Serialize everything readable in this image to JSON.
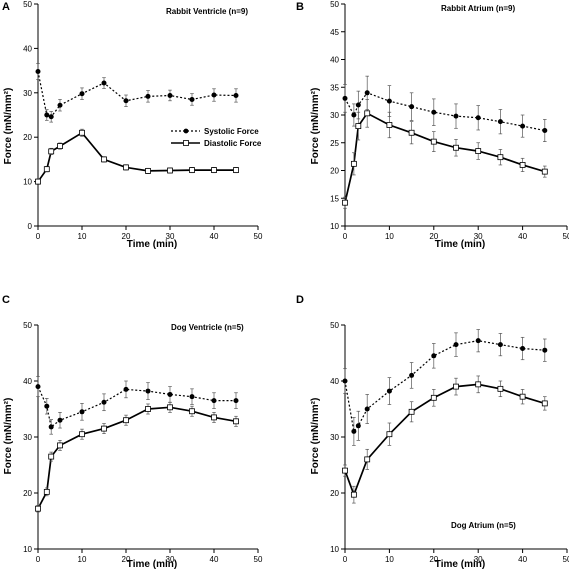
{
  "chart_data": [
    {
      "type": "line",
      "panel": "A",
      "title": "Rabbit Ventricle (n=9)",
      "xlabel": "Time (min)",
      "ylabel": "Force (mN/mm²)",
      "xlim": [
        0,
        50
      ],
      "ylim": [
        0,
        50
      ],
      "x_ticks": [
        0,
        10,
        20,
        30,
        40,
        50
      ],
      "y_ticks": [
        0,
        10,
        20,
        30,
        40,
        50
      ],
      "legend": {
        "position": "center-right"
      },
      "series": [
        {
          "name": "Systolic Force",
          "style": "dotted",
          "marker": "filled-circle",
          "x": [
            0,
            2,
            3,
            5,
            10,
            15,
            20,
            25,
            30,
            35,
            40,
            45
          ],
          "y": [
            34.8,
            25.0,
            24.6,
            27.2,
            29.8,
            32.2,
            28.2,
            29.2,
            29.4,
            28.5,
            29.5,
            29.4
          ],
          "err": [
            1.8,
            1.2,
            1.2,
            1.3,
            1.3,
            1.2,
            1.3,
            1.3,
            1.2,
            1.3,
            1.4,
            1.5
          ]
        },
        {
          "name": "Diastolic Force",
          "style": "solid",
          "marker": "open-square",
          "x": [
            0,
            2,
            3,
            5,
            10,
            15,
            20,
            25,
            30,
            35,
            40,
            45
          ],
          "y": [
            10.0,
            12.8,
            16.8,
            18.0,
            21.0,
            15.0,
            13.2,
            12.4,
            12.5,
            12.6,
            12.6,
            12.6
          ],
          "err": [
            0.6,
            0.6,
            0.7,
            0.7,
            0.8,
            0.6,
            0.6,
            0.6,
            0.6,
            0.6,
            0.6,
            0.6
          ]
        }
      ]
    },
    {
      "type": "line",
      "panel": "B",
      "title": "Rabbit Atrium (n=9)",
      "xlabel": "Time (min)",
      "ylabel": "Force (mN/mm²)",
      "xlim": [
        0,
        50
      ],
      "ylim": [
        10,
        50
      ],
      "x_ticks": [
        0,
        10,
        20,
        30,
        40,
        50
      ],
      "y_ticks": [
        10,
        15,
        20,
        25,
        30,
        35,
        40,
        45,
        50
      ],
      "series": [
        {
          "name": "Systolic Force",
          "style": "dotted",
          "marker": "filled-circle",
          "x": [
            0,
            2,
            3,
            5,
            10,
            15,
            20,
            25,
            30,
            35,
            40,
            45
          ],
          "y": [
            33.0,
            30.0,
            31.8,
            34.0,
            32.5,
            31.5,
            30.5,
            29.8,
            29.5,
            28.8,
            28.0,
            27.2
          ],
          "err": [
            2.5,
            2.0,
            2.5,
            3.0,
            2.8,
            2.5,
            2.4,
            2.2,
            2.2,
            2.2,
            2.0,
            2.0
          ]
        },
        {
          "name": "Diastolic Force",
          "style": "solid",
          "marker": "open-square",
          "x": [
            0,
            2,
            3,
            5,
            10,
            15,
            20,
            25,
            30,
            35,
            40,
            45
          ],
          "y": [
            14.2,
            21.2,
            28.0,
            30.3,
            28.2,
            26.8,
            25.2,
            24.1,
            23.5,
            22.4,
            21.0,
            19.8
          ],
          "err": [
            1.0,
            2.0,
            2.5,
            2.5,
            2.3,
            2.0,
            1.8,
            1.5,
            1.5,
            1.4,
            1.2,
            1.0
          ]
        }
      ]
    },
    {
      "type": "line",
      "panel": "C",
      "title": "Dog Ventricle (n=5)",
      "xlabel": "Time (min)",
      "ylabel": "Force (mN/mm²)",
      "xlim": [
        0,
        50
      ],
      "ylim": [
        10,
        50
      ],
      "x_ticks": [
        0,
        10,
        20,
        30,
        40,
        50
      ],
      "y_ticks": [
        10,
        20,
        30,
        40,
        50
      ],
      "series": [
        {
          "name": "Systolic Force",
          "style": "dotted",
          "marker": "filled-circle",
          "x": [
            0,
            2,
            3,
            5,
            10,
            15,
            20,
            25,
            30,
            35,
            40,
            45
          ],
          "y": [
            39.0,
            35.5,
            31.8,
            33.0,
            34.5,
            36.2,
            38.5,
            38.2,
            37.6,
            37.2,
            36.5,
            36.5
          ],
          "err": [
            1.8,
            1.4,
            1.3,
            1.4,
            1.5,
            1.5,
            1.5,
            1.5,
            1.4,
            1.4,
            1.4,
            1.4
          ]
        },
        {
          "name": "Diastolic Force",
          "style": "solid",
          "marker": "open-square",
          "x": [
            0,
            2,
            3,
            5,
            10,
            15,
            20,
            25,
            30,
            35,
            40,
            45
          ],
          "y": [
            17.2,
            20.2,
            26.5,
            28.5,
            30.5,
            31.5,
            33.0,
            35.0,
            35.3,
            34.6,
            33.5,
            32.8
          ],
          "err": [
            0.6,
            0.7,
            0.8,
            0.9,
            0.9,
            0.9,
            0.9,
            0.9,
            0.9,
            0.9,
            0.9,
            0.9
          ]
        }
      ]
    },
    {
      "type": "line",
      "panel": "D",
      "title": "Dog Atrium (n=5)",
      "xlabel": "Time (min)",
      "ylabel": "Force (mN/mm²)",
      "xlim": [
        0,
        50
      ],
      "ylim": [
        10,
        50
      ],
      "x_ticks": [
        0,
        10,
        20,
        30,
        40,
        50
      ],
      "y_ticks": [
        10,
        20,
        30,
        40,
        50
      ],
      "series": [
        {
          "name": "Systolic Force",
          "style": "dotted",
          "marker": "filled-circle",
          "x": [
            0,
            2,
            3,
            5,
            10,
            15,
            20,
            25,
            30,
            35,
            40,
            45
          ],
          "y": [
            40.0,
            31.0,
            32.0,
            35.0,
            38.2,
            41.0,
            44.5,
            46.5,
            47.2,
            46.5,
            45.8,
            45.5
          ],
          "err": [
            2.2,
            2.5,
            2.6,
            2.6,
            2.4,
            2.3,
            2.2,
            2.1,
            2.0,
            2.0,
            2.0,
            2.0
          ]
        },
        {
          "name": "Diastolic Force",
          "style": "solid",
          "marker": "open-square",
          "x": [
            0,
            2,
            5,
            10,
            15,
            20,
            25,
            30,
            35,
            40,
            45
          ],
          "y": [
            24.0,
            19.7,
            26.0,
            30.5,
            34.5,
            37.0,
            39.0,
            39.4,
            38.6,
            37.2,
            36.0
          ],
          "err": [
            1.0,
            1.5,
            1.8,
            2.0,
            1.8,
            1.5,
            1.5,
            1.5,
            1.4,
            1.3,
            1.2
          ]
        }
      ]
    }
  ]
}
